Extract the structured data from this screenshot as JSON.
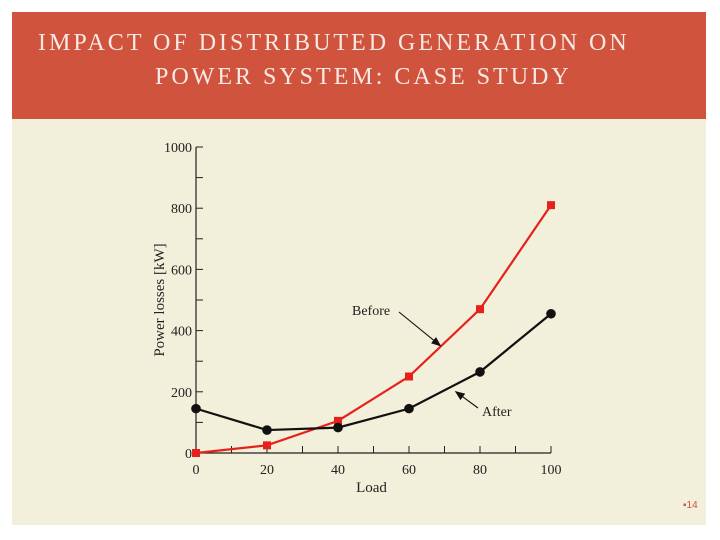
{
  "slide": {
    "title_line1": "IMPACT OF DISTRIBUTED GENERATION ON",
    "title_line2": "POWER SYSTEM: CASE STUDY",
    "page_number": "14",
    "colors": {
      "title_bar": "#d0533d",
      "panel": "#f2f0da",
      "title_text": "#f7e9e4"
    }
  },
  "chart_data": {
    "type": "line",
    "title": "",
    "xlabel": "Load",
    "ylabel": "Power losses [kW]",
    "x": [
      0,
      20,
      40,
      60,
      80,
      100
    ],
    "xlim": [
      0,
      100
    ],
    "ylim": [
      0,
      1000
    ],
    "xticks": [
      "0",
      "20",
      "40",
      "60",
      "80",
      "100"
    ],
    "yticks": [
      "0",
      "200",
      "400",
      "600",
      "800",
      "1000"
    ],
    "grid": false,
    "series": [
      {
        "name": "Before",
        "color": "#e8201b",
        "marker": "square",
        "values": [
          0,
          25,
          105,
          250,
          470,
          810
        ]
      },
      {
        "name": "After",
        "color": "#111111",
        "marker": "circle",
        "values": [
          145,
          75,
          83,
          145,
          265,
          455
        ]
      }
    ],
    "annotations": [
      {
        "text": "Before",
        "series": "Before",
        "x": 70
      },
      {
        "text": "After",
        "series": "After",
        "x": 72
      }
    ]
  }
}
